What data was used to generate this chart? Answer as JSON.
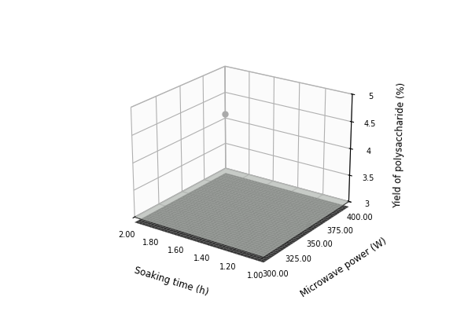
{
  "soaking_time_range": [
    1.0,
    2.0
  ],
  "microwave_power_range": [
    300,
    400
  ],
  "yield_range": [
    3.0,
    5.0
  ],
  "soaking_time_ticks": [
    1.0,
    1.2,
    1.4,
    1.6,
    1.8,
    2.0
  ],
  "microwave_power_ticks": [
    300.0,
    325.0,
    350.0,
    375.0,
    400.0
  ],
  "yield_ticks": [
    3.0,
    3.5,
    4.0,
    4.5,
    5.0
  ],
  "xlabel": "Soaking time (h)",
  "ylabel": "Microwave power (W)",
  "zlabel": "Yield of polysaccharide (%)",
  "surface_color": "#2e2e2e",
  "marker_color": "#aaaaaa",
  "marker1": [
    2.0,
    400,
    4.08
  ],
  "marker2": [
    1.0,
    350,
    3.05
  ],
  "coefficients": {
    "intercept": -58.0,
    "a1": 72.0,
    "a2": 0.16,
    "a11": -26.0,
    "a22": -0.00022,
    "a12": -0.06
  },
  "elev": 22,
  "azim": -55,
  "figwidth": 5.95,
  "figheight": 4.01,
  "dpi": 100
}
